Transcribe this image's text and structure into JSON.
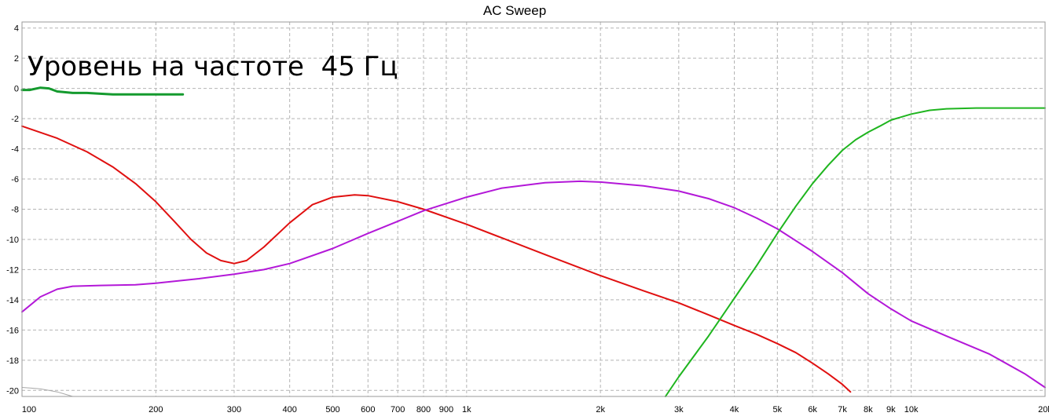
{
  "chart_data": {
    "type": "line",
    "title": "AC Sweep",
    "annotation": "Уровень на частоте  45 Гц",
    "xscale": "log",
    "xlim": [
      100,
      20000
    ],
    "ylim": [
      -20.4,
      4.4
    ],
    "grid": true,
    "x_ticks": [
      {
        "value": 100,
        "label": "100"
      },
      {
        "value": 200,
        "label": "200"
      },
      {
        "value": 300,
        "label": "300"
      },
      {
        "value": 400,
        "label": "400"
      },
      {
        "value": 500,
        "label": "500"
      },
      {
        "value": 600,
        "label": "600"
      },
      {
        "value": 700,
        "label": "700"
      },
      {
        "value": 800,
        "label": "800"
      },
      {
        "value": 900,
        "label": "900"
      },
      {
        "value": 1000,
        "label": "1k"
      },
      {
        "value": 2000,
        "label": "2k"
      },
      {
        "value": 3000,
        "label": "3k"
      },
      {
        "value": 4000,
        "label": "4k"
      },
      {
        "value": 5000,
        "label": "5k"
      },
      {
        "value": 6000,
        "label": "6k"
      },
      {
        "value": 7000,
        "label": "7k"
      },
      {
        "value": 8000,
        "label": "8k"
      },
      {
        "value": 9000,
        "label": "9k"
      },
      {
        "value": 10000,
        "label": "10k"
      },
      {
        "value": 20000,
        "label": "20k"
      }
    ],
    "y_ticks": [
      {
        "value": 4,
        "label": "4"
      },
      {
        "value": 2,
        "label": "2"
      },
      {
        "value": 0,
        "label": "0"
      },
      {
        "value": -2,
        "label": "-2"
      },
      {
        "value": -4,
        "label": "-4"
      },
      {
        "value": -6,
        "label": "-6"
      },
      {
        "value": -8,
        "label": "-8"
      },
      {
        "value": -10,
        "label": "-10"
      },
      {
        "value": -12,
        "label": "-12"
      },
      {
        "value": -14,
        "label": "-14"
      },
      {
        "value": -16,
        "label": "-16"
      },
      {
        "value": -18,
        "label": "-18"
      },
      {
        "value": -20,
        "label": "-20"
      }
    ],
    "series": [
      {
        "color": "#e01010",
        "width": 2,
        "points": [
          [
            100,
            -2.5
          ],
          [
            120,
            -3.3
          ],
          [
            140,
            -4.2
          ],
          [
            160,
            -5.2
          ],
          [
            180,
            -6.3
          ],
          [
            200,
            -7.5
          ],
          [
            220,
            -8.8
          ],
          [
            240,
            -10.0
          ],
          [
            260,
            -10.9
          ],
          [
            280,
            -11.4
          ],
          [
            300,
            -11.6
          ],
          [
            320,
            -11.4
          ],
          [
            350,
            -10.5
          ],
          [
            400,
            -8.9
          ],
          [
            450,
            -7.7
          ],
          [
            500,
            -7.2
          ],
          [
            560,
            -7.05
          ],
          [
            600,
            -7.1
          ],
          [
            700,
            -7.5
          ],
          [
            800,
            -8.0
          ],
          [
            1000,
            -9.0
          ],
          [
            1500,
            -11.0
          ],
          [
            2000,
            -12.4
          ],
          [
            2500,
            -13.4
          ],
          [
            3000,
            -14.2
          ],
          [
            3500,
            -15.0
          ],
          [
            4000,
            -15.7
          ],
          [
            4500,
            -16.3
          ],
          [
            5000,
            -16.9
          ],
          [
            5500,
            -17.5
          ],
          [
            6000,
            -18.2
          ],
          [
            6500,
            -18.9
          ],
          [
            7000,
            -19.6
          ],
          [
            7300,
            -20.1
          ]
        ]
      },
      {
        "color": "#b318d8",
        "width": 2,
        "points": [
          [
            100,
            -14.8
          ],
          [
            110,
            -13.8
          ],
          [
            120,
            -13.3
          ],
          [
            130,
            -13.1
          ],
          [
            150,
            -13.05
          ],
          [
            180,
            -13.0
          ],
          [
            200,
            -12.9
          ],
          [
            250,
            -12.6
          ],
          [
            300,
            -12.3
          ],
          [
            350,
            -12.0
          ],
          [
            400,
            -11.6
          ],
          [
            500,
            -10.6
          ],
          [
            600,
            -9.6
          ],
          [
            700,
            -8.8
          ],
          [
            800,
            -8.1
          ],
          [
            1000,
            -7.2
          ],
          [
            1200,
            -6.6
          ],
          [
            1500,
            -6.25
          ],
          [
            1800,
            -6.15
          ],
          [
            2000,
            -6.2
          ],
          [
            2500,
            -6.45
          ],
          [
            3000,
            -6.8
          ],
          [
            3500,
            -7.3
          ],
          [
            4000,
            -7.9
          ],
          [
            4500,
            -8.6
          ],
          [
            5000,
            -9.3
          ],
          [
            6000,
            -10.8
          ],
          [
            7000,
            -12.2
          ],
          [
            8000,
            -13.6
          ],
          [
            9000,
            -14.6
          ],
          [
            10000,
            -15.4
          ],
          [
            12000,
            -16.4
          ],
          [
            15000,
            -17.6
          ],
          [
            18000,
            -18.9
          ],
          [
            20000,
            -19.8
          ]
        ]
      },
      {
        "color": "#1fb51f",
        "width": 2,
        "points": [
          [
            2800,
            -20.4
          ],
          [
            3000,
            -19.1
          ],
          [
            3500,
            -16.4
          ],
          [
            4000,
            -13.9
          ],
          [
            4500,
            -11.7
          ],
          [
            5000,
            -9.6
          ],
          [
            5500,
            -7.8
          ],
          [
            6000,
            -6.3
          ],
          [
            6500,
            -5.1
          ],
          [
            7000,
            -4.1
          ],
          [
            7500,
            -3.4
          ],
          [
            8000,
            -2.9
          ],
          [
            8500,
            -2.5
          ],
          [
            9000,
            -2.1
          ],
          [
            10000,
            -1.7
          ],
          [
            11000,
            -1.45
          ],
          [
            12000,
            -1.35
          ],
          [
            14000,
            -1.3
          ],
          [
            17000,
            -1.3
          ],
          [
            20000,
            -1.3
          ]
        ]
      },
      {
        "color": "#149a2e",
        "width": 3,
        "points": [
          [
            100,
            -0.1
          ],
          [
            104,
            -0.1
          ],
          [
            110,
            0.05
          ],
          [
            115,
            0.0
          ],
          [
            120,
            -0.2
          ],
          [
            130,
            -0.3
          ],
          [
            140,
            -0.3
          ],
          [
            150,
            -0.35
          ],
          [
            160,
            -0.4
          ],
          [
            180,
            -0.4
          ],
          [
            200,
            -0.4
          ],
          [
            230,
            -0.4
          ]
        ]
      },
      {
        "color": "#a8a8a8",
        "width": 1,
        "points": [
          [
            100,
            -19.8
          ],
          [
            105,
            -19.85
          ],
          [
            110,
            -19.9
          ],
          [
            115,
            -20.0
          ],
          [
            120,
            -20.1
          ],
          [
            125,
            -20.25
          ],
          [
            130,
            -20.4
          ]
        ]
      }
    ]
  }
}
